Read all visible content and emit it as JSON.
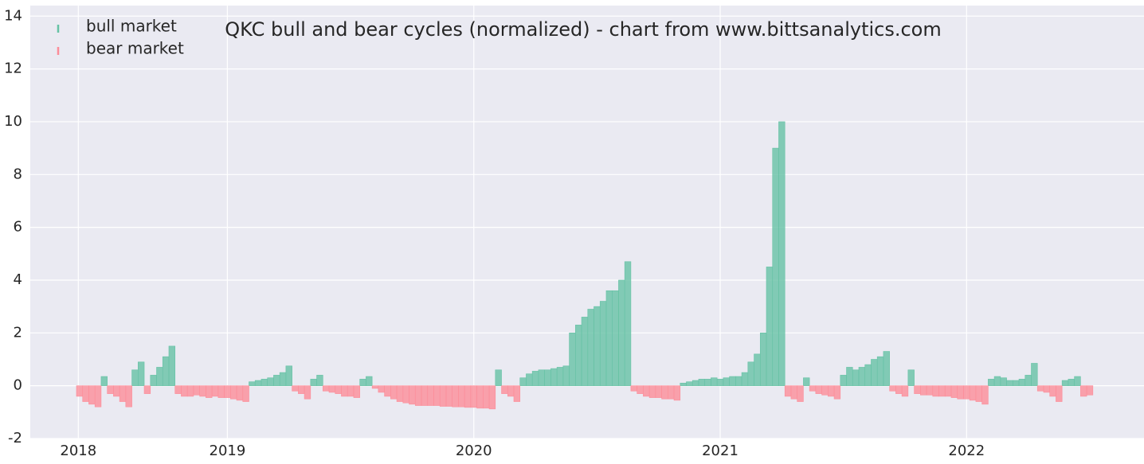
{
  "chart_data": {
    "type": "bar",
    "title": "QKC bull and bear cycles (normalized)  - chart from www.bittsanalytics.com",
    "x": [
      2018.4,
      2018.425,
      2018.45,
      2018.475,
      2018.5,
      2018.525,
      2018.55,
      2018.575,
      2018.6,
      2018.625,
      2018.65,
      2018.675,
      2018.7,
      2018.725,
      2018.75,
      2018.775,
      2018.8,
      2018.825,
      2018.85,
      2018.875,
      2018.9,
      2018.925,
      2018.95,
      2018.975,
      2019.0,
      2019.025,
      2019.05,
      2019.075,
      2019.1,
      2019.125,
      2019.15,
      2019.175,
      2019.2,
      2019.225,
      2019.25,
      2019.275,
      2019.3,
      2019.325,
      2019.35,
      2019.375,
      2019.4,
      2019.425,
      2019.45,
      2019.475,
      2019.5,
      2019.525,
      2019.55,
      2019.575,
      2019.6,
      2019.625,
      2019.65,
      2019.675,
      2019.7,
      2019.725,
      2019.75,
      2019.775,
      2019.8,
      2019.825,
      2019.85,
      2019.875,
      2019.9,
      2019.925,
      2019.95,
      2019.975,
      2020.0,
      2020.025,
      2020.05,
      2020.075,
      2020.1,
      2020.125,
      2020.15,
      2020.175,
      2020.2,
      2020.225,
      2020.25,
      2020.275,
      2020.3,
      2020.325,
      2020.35,
      2020.375,
      2020.4,
      2020.425,
      2020.45,
      2020.475,
      2020.5,
      2020.525,
      2020.55,
      2020.575,
      2020.6,
      2020.625,
      2020.65,
      2020.675,
      2020.7,
      2020.725,
      2020.75,
      2020.775,
      2020.8,
      2020.825,
      2020.85,
      2020.875,
      2020.9,
      2020.925,
      2020.95,
      2020.975,
      2021.0,
      2021.025,
      2021.05,
      2021.075,
      2021.1,
      2021.125,
      2021.15,
      2021.175,
      2021.2,
      2021.225,
      2021.25,
      2021.275,
      2021.3,
      2021.325,
      2021.35,
      2021.375,
      2021.4,
      2021.425,
      2021.45,
      2021.475,
      2021.5,
      2021.525,
      2021.55,
      2021.575,
      2021.6,
      2021.625,
      2021.65,
      2021.675,
      2021.7,
      2021.725,
      2021.75,
      2021.775,
      2021.8,
      2021.825,
      2021.85,
      2021.875,
      2021.9,
      2021.925,
      2021.95,
      2021.975,
      2022.0,
      2022.025,
      2022.05,
      2022.075,
      2022.1,
      2022.125,
      2022.15,
      2022.175,
      2022.2,
      2022.225,
      2022.25,
      2022.275,
      2022.3,
      2022.325,
      2022.35,
      2022.375,
      2022.4,
      2022.425,
      2022.45,
      2022.475,
      2022.5
    ],
    "series": [
      {
        "name": "bull market",
        "color": "#66c2a5",
        "values": [
          null,
          null,
          null,
          null,
          0.35,
          null,
          null,
          null,
          null,
          0.6,
          0.9,
          null,
          0.4,
          0.7,
          1.1,
          1.5,
          null,
          null,
          null,
          null,
          null,
          null,
          null,
          null,
          null,
          null,
          null,
          null,
          0.15,
          0.2,
          0.25,
          0.3,
          0.4,
          0.5,
          0.75,
          null,
          null,
          null,
          0.25,
          0.4,
          null,
          null,
          null,
          null,
          null,
          null,
          0.25,
          0.35,
          null,
          null,
          null,
          null,
          null,
          null,
          null,
          null,
          null,
          null,
          null,
          null,
          null,
          null,
          null,
          null,
          null,
          null,
          null,
          null,
          0.6,
          null,
          null,
          null,
          0.3,
          0.45,
          0.55,
          0.6,
          0.6,
          0.65,
          0.7,
          0.75,
          2.0,
          2.3,
          2.6,
          2.9,
          3.0,
          3.2,
          3.6,
          3.6,
          4.0,
          4.7,
          null,
          null,
          null,
          null,
          null,
          null,
          null,
          null,
          0.1,
          0.15,
          0.2,
          0.25,
          0.25,
          0.3,
          0.25,
          0.3,
          0.35,
          0.35,
          0.5,
          0.9,
          1.2,
          2.0,
          4.5,
          9.0,
          10.0,
          null,
          null,
          null,
          0.3,
          null,
          null,
          null,
          null,
          null,
          0.4,
          0.7,
          0.6,
          0.7,
          0.8,
          1.0,
          1.1,
          1.3,
          null,
          null,
          null,
          0.6,
          null,
          null,
          null,
          null,
          null,
          null,
          null,
          null,
          null,
          null,
          null,
          null,
          0.25,
          0.35,
          0.3,
          0.2,
          0.2,
          0.25,
          0.4,
          0.85,
          null,
          null,
          null,
          null,
          0.2,
          0.25,
          0.35,
          null,
          null
        ]
      },
      {
        "name": "bear market",
        "color": "#fc8d99",
        "values": [
          -0.4,
          -0.6,
          -0.7,
          -0.8,
          null,
          -0.3,
          -0.4,
          -0.6,
          -0.8,
          null,
          null,
          -0.3,
          null,
          null,
          null,
          null,
          -0.3,
          -0.4,
          -0.4,
          -0.35,
          -0.4,
          -0.45,
          -0.4,
          -0.45,
          -0.45,
          -0.5,
          -0.55,
          -0.6,
          null,
          null,
          null,
          null,
          null,
          null,
          null,
          -0.2,
          -0.3,
          -0.5,
          null,
          null,
          -0.2,
          -0.25,
          -0.3,
          -0.4,
          -0.4,
          -0.45,
          null,
          null,
          -0.1,
          -0.25,
          -0.4,
          -0.5,
          -0.6,
          -0.65,
          -0.7,
          -0.75,
          -0.75,
          -0.75,
          -0.75,
          -0.78,
          -0.78,
          -0.8,
          -0.8,
          -0.82,
          -0.82,
          -0.85,
          -0.85,
          -0.88,
          null,
          -0.3,
          -0.4,
          -0.6,
          null,
          null,
          null,
          null,
          null,
          null,
          null,
          null,
          null,
          null,
          null,
          null,
          null,
          null,
          null,
          null,
          null,
          null,
          -0.2,
          -0.3,
          -0.4,
          -0.45,
          -0.45,
          -0.5,
          -0.5,
          -0.55,
          null,
          null,
          null,
          null,
          null,
          null,
          null,
          null,
          null,
          null,
          null,
          null,
          null,
          null,
          null,
          null,
          null,
          -0.4,
          -0.5,
          -0.6,
          null,
          -0.2,
          -0.3,
          -0.35,
          -0.4,
          -0.5,
          null,
          null,
          null,
          null,
          null,
          null,
          null,
          null,
          -0.2,
          -0.3,
          -0.4,
          null,
          -0.3,
          -0.35,
          -0.35,
          -0.4,
          -0.4,
          -0.4,
          -0.45,
          -0.5,
          -0.5,
          -0.55,
          -0.6,
          -0.7,
          null,
          null,
          null,
          null,
          null,
          null,
          null,
          null,
          -0.2,
          -0.25,
          -0.4,
          -0.6,
          null,
          null,
          null,
          -0.4,
          -0.35
        ]
      }
    ],
    "xlim": [
      2018.2,
      2022.72
    ],
    "xticks": [
      {
        "value": 2018.395,
        "label": "2018"
      },
      2019,
      2020,
      2021,
      2022
    ],
    "ylim": [
      -2,
      14.4
    ],
    "yticks": [
      -2,
      0,
      2,
      4,
      6,
      8,
      10,
      12,
      14
    ],
    "grid": true,
    "legend": "upper left"
  }
}
